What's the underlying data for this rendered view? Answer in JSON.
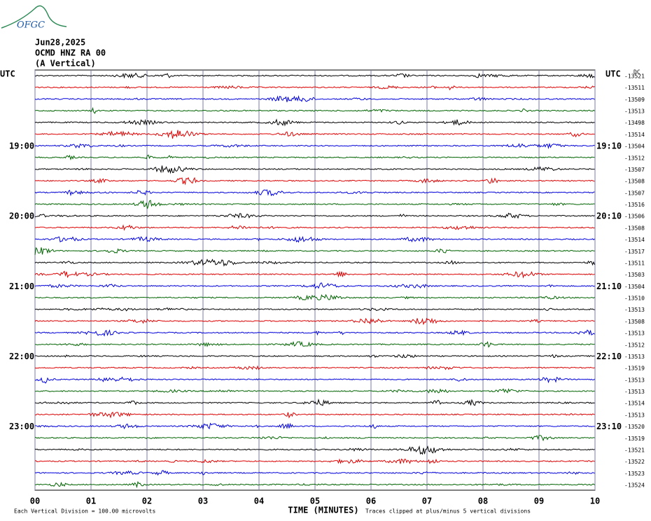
{
  "header": {
    "logo": "OFGC",
    "date": "Jun28,2025",
    "station": "OCMD HNZ RA 00",
    "component": "(A Vertical)"
  },
  "left_label": "UTC",
  "right_label": "UTC",
  "dc_label": "DC",
  "left_times": [
    "19:00",
    "20:00",
    "21:00",
    "22:00",
    "23:00"
  ],
  "right_times": [
    "19:10",
    "20:10",
    "21:10",
    "22:10",
    "23:10"
  ],
  "trace_offsets": [
    "-13521",
    "-13511",
    "-13509",
    "-13513",
    "-13498",
    "-13514",
    "-13504",
    "-13512",
    "-13507",
    "-13508",
    "-13507",
    "-13516",
    "-13506",
    "-13508",
    "-13514",
    "-13517",
    "-13511",
    "-13503",
    "-13504",
    "-13510",
    "-13513",
    "-13508",
    "-13513",
    "-13512",
    "-13513",
    "-13519",
    "-13513",
    "-13513",
    "-13514",
    "-13513",
    "-13520",
    "-13519",
    "-13521",
    "-13522",
    "-13523",
    "-13524"
  ],
  "trace_colors": [
    "#000000",
    "#e00000",
    "#0000e0",
    "#006400"
  ],
  "xticks": [
    {
      "value": 0,
      "label": "00"
    },
    {
      "value": 1,
      "label": "01"
    },
    {
      "value": 2,
      "label": "02"
    },
    {
      "value": 3,
      "label": "03"
    },
    {
      "value": 4,
      "label": "04"
    },
    {
      "value": 5,
      "label": "05"
    },
    {
      "value": 6,
      "label": "06"
    },
    {
      "value": 7,
      "label": "07"
    },
    {
      "value": 8,
      "label": "08"
    },
    {
      "value": 9,
      "label": "09"
    },
    {
      "value": 10,
      "label": "10"
    }
  ],
  "xlim": [
    0,
    10
  ],
  "xlabel": "TIME (MINUTES)",
  "footer_left": "Each Vertical Division =  100.00 microvolts",
  "footer_right": "Traces clipped at plus/minus 5 vertical divisions"
}
